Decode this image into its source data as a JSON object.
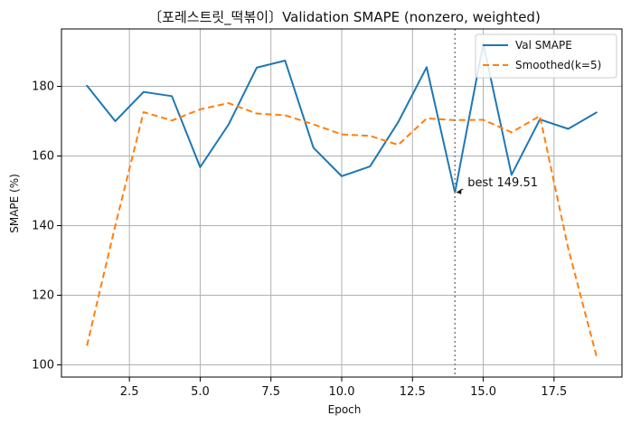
{
  "chart_data": {
    "type": "line",
    "title": "〔포레스트릿_떡볶이〕Validation SMAPE (nonzero, weighted)",
    "xlabel": "Epoch",
    "ylabel": "SMAPE (%)",
    "xlim": [
      0.1,
      19.9
    ],
    "ylim": [
      96.5,
      196.5
    ],
    "x": [
      1,
      2,
      3,
      4,
      5,
      6,
      7,
      8,
      9,
      10,
      11,
      12,
      13,
      14,
      15,
      16,
      17,
      18,
      19
    ],
    "x_ticks": [
      2.5,
      5.0,
      7.5,
      10.0,
      12.5,
      15.0,
      17.5
    ],
    "x_tick_labels": [
      "2.5",
      "5.0",
      "7.5",
      "10.0",
      "12.5",
      "15.0",
      "17.5"
    ],
    "y_ticks": [
      100,
      120,
      140,
      160,
      180
    ],
    "y_tick_labels": [
      "100",
      "120",
      "140",
      "160",
      "180"
    ],
    "grid": true,
    "legend_position": "top-right",
    "series": [
      {
        "name": "Val SMAPE",
        "style": "solid",
        "color": "#1f77b4",
        "values": [
          180.2,
          170.0,
          178.4,
          177.2,
          156.8,
          169.0,
          185.4,
          187.4,
          162.4,
          154.2,
          157.0,
          169.8,
          185.5,
          149.51,
          192.3,
          154.6,
          170.5,
          167.8,
          172.5
        ]
      },
      {
        "name": "Smoothed(k=5)",
        "style": "dashed",
        "color": "#ff7f0e",
        "values": [
          105.5,
          140.0,
          172.6,
          170.2,
          173.4,
          175.2,
          172.2,
          171.7,
          169.1,
          166.2,
          165.8,
          163.2,
          170.8,
          170.3,
          170.4,
          166.8,
          171.5,
          133.5,
          102.5
        ]
      }
    ],
    "best_marker": {
      "x": 14,
      "y": 149.51,
      "line_color": "#7f7f7f",
      "text": "best 149.51"
    }
  }
}
